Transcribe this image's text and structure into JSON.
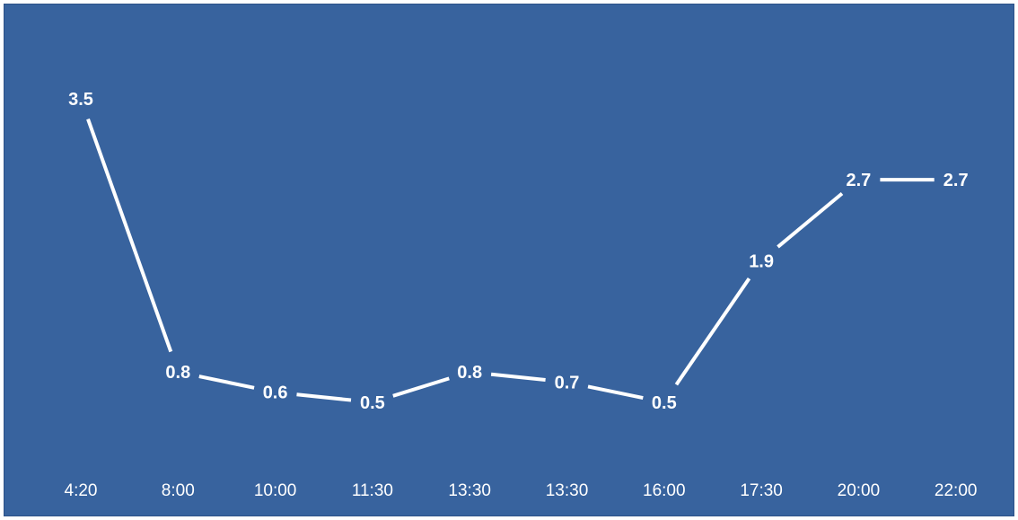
{
  "chart_data": {
    "type": "line",
    "title": "",
    "xlabel": "",
    "ylabel": "",
    "categories": [
      "4:20",
      "8:00",
      "10:00",
      "11:30",
      "13:30",
      "13:30",
      "16:00",
      "17:30",
      "20:00",
      "22:00"
    ],
    "series": [
      {
        "values": [
          3.5,
          0.8,
          0.6,
          0.5,
          0.8,
          0.7,
          0.5,
          1.9,
          2.7,
          2.7
        ],
        "data_labels": [
          "3.5",
          "0.8",
          "0.6",
          "0.5",
          "0.8",
          "0.7",
          "0.5",
          "1.9",
          "2.7",
          "2.7"
        ],
        "color": "#ffffff"
      }
    ],
    "ylim": [
      0.5,
      3.5
    ],
    "grid": false,
    "legend": "none",
    "background_color": "#38639e",
    "axis_text_color": "#ffffff"
  }
}
